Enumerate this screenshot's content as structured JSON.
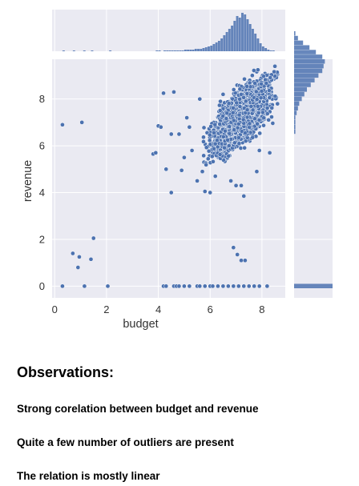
{
  "chart_data": {
    "type": "scatter",
    "subtype": "jointplot",
    "xlabel": "budget",
    "ylabel": "revenue",
    "xlim": [
      -0.1,
      8.9
    ],
    "ylim": [
      -0.5,
      9.7
    ],
    "xticks": [
      0,
      2,
      4,
      6,
      8
    ],
    "yticks": [
      0,
      2,
      4,
      6,
      8
    ],
    "grid": true,
    "marginals": {
      "top": "histogram of budget",
      "right": "histogram of revenue"
    },
    "colors": {
      "points": "#4c72b0",
      "axes_background": "#eaeaf2",
      "grid": "#ffffff",
      "text": "#333333"
    },
    "outlier_points": [
      {
        "x": 0.3,
        "y": 6.9
      },
      {
        "x": 1.05,
        "y": 7.0
      },
      {
        "x": 0.7,
        "y": 1.4
      },
      {
        "x": 0.9,
        "y": 0.8
      },
      {
        "x": 0.95,
        "y": 1.25
      },
      {
        "x": 1.4,
        "y": 1.15
      },
      {
        "x": 1.5,
        "y": 2.05
      },
      {
        "x": 0.3,
        "y": 0.0
      },
      {
        "x": 1.15,
        "y": 0.0
      },
      {
        "x": 2.05,
        "y": 0.0
      },
      {
        "x": 3.8,
        "y": 5.65
      },
      {
        "x": 3.9,
        "y": 5.7
      },
      {
        "x": 4.0,
        "y": 6.85
      },
      {
        "x": 4.1,
        "y": 6.8
      },
      {
        "x": 4.2,
        "y": 8.25
      },
      {
        "x": 4.6,
        "y": 8.3
      },
      {
        "x": 4.5,
        "y": 6.5
      },
      {
        "x": 4.8,
        "y": 6.5
      },
      {
        "x": 4.3,
        "y": 5.0
      },
      {
        "x": 4.5,
        "y": 4.0
      },
      {
        "x": 4.9,
        "y": 4.95
      },
      {
        "x": 5.0,
        "y": 5.5
      },
      {
        "x": 5.1,
        "y": 7.2
      },
      {
        "x": 5.3,
        "y": 5.8
      },
      {
        "x": 5.5,
        "y": 4.5
      },
      {
        "x": 5.7,
        "y": 4.9
      },
      {
        "x": 5.8,
        "y": 4.05
      },
      {
        "x": 6.0,
        "y": 4.0
      },
      {
        "x": 6.2,
        "y": 4.7
      },
      {
        "x": 6.8,
        "y": 4.5
      },
      {
        "x": 7.0,
        "y": 4.3
      },
      {
        "x": 7.2,
        "y": 4.3
      },
      {
        "x": 7.3,
        "y": 3.85
      },
      {
        "x": 7.8,
        "y": 4.9
      },
      {
        "x": 6.9,
        "y": 1.65
      },
      {
        "x": 7.05,
        "y": 1.35
      },
      {
        "x": 7.2,
        "y": 1.1
      },
      {
        "x": 7.35,
        "y": 1.1
      },
      {
        "x": 7.9,
        "y": 5.8
      },
      {
        "x": 8.3,
        "y": 5.7
      },
      {
        "x": 8.4,
        "y": 8.0
      },
      {
        "x": 8.6,
        "y": 9.05
      },
      {
        "x": 8.5,
        "y": 9.4
      },
      {
        "x": 6.5,
        "y": 8.2
      },
      {
        "x": 5.6,
        "y": 8.0
      },
      {
        "x": 5.2,
        "y": 6.8
      }
    ],
    "zero_revenue_budgets": [
      4.2,
      4.3,
      4.6,
      4.7,
      4.8,
      5.0,
      5.2,
      5.5,
      5.6,
      5.8,
      6.0,
      6.1,
      6.3,
      6.5,
      6.7,
      6.9,
      7.1,
      7.3,
      7.5,
      7.7,
      7.9,
      8.2
    ],
    "main_cluster": {
      "description": "dense band of points, budget about 5 to 8.6, revenue about 4.5 to 9.3, increasing linearly",
      "budget_range": [
        5.0,
        8.6
      ],
      "revenue_range": [
        4.5,
        9.3
      ]
    },
    "budget_histogram": {
      "bin_start": -0.1,
      "bin_width": 0.1,
      "counts": [
        0,
        0,
        0,
        0,
        1,
        0,
        0,
        0,
        1,
        0,
        0,
        0,
        1,
        0,
        0,
        1,
        0,
        0,
        0,
        0,
        0,
        0,
        1,
        0,
        0,
        0,
        0,
        0,
        0,
        0,
        0,
        0,
        0,
        0,
        0,
        0,
        0,
        0,
        0,
        0,
        1,
        1,
        0,
        1,
        1,
        1,
        1,
        1,
        1,
        1,
        1,
        2,
        2,
        2,
        2,
        3,
        3,
        3,
        4,
        5,
        6,
        7,
        9,
        11,
        13,
        16,
        20,
        24,
        28,
        32,
        38,
        44,
        42,
        48,
        46,
        40,
        34,
        28,
        22,
        16,
        10,
        6,
        4,
        2,
        1,
        1,
        0,
        0,
        0,
        0
      ]
    },
    "revenue_histogram": {
      "bin_start": -0.5,
      "bin_width": 0.2,
      "counts": [
        0,
        0,
        30,
        0,
        0,
        0,
        0,
        0,
        0,
        0,
        0,
        0,
        0,
        0,
        0,
        0,
        0,
        0,
        0,
        0,
        0,
        0,
        0,
        0,
        0,
        0,
        0,
        0,
        0,
        0,
        0,
        0,
        0,
        0,
        0,
        1,
        1,
        1,
        1,
        2,
        3,
        4,
        6,
        8,
        10,
        13,
        16,
        19,
        22,
        23,
        24,
        22,
        17,
        12,
        7,
        3,
        1,
        0
      ]
    }
  },
  "observations": {
    "heading": "Observations:",
    "lines": [
      "Strong corelation between budget and revenue",
      "Quite a few number of outliers are present",
      "The relation is mostly linear"
    ]
  }
}
